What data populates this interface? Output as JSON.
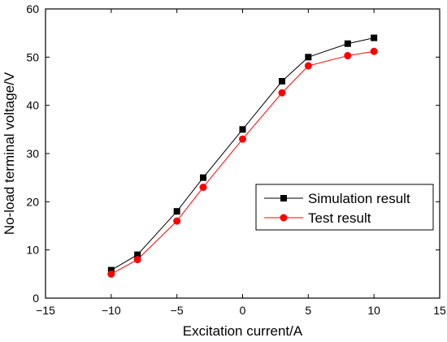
{
  "chart_data": {
    "type": "line",
    "xlabel": "Excitation current/A",
    "ylabel": "No-load terminal voltage/V",
    "xlim": [
      -15,
      15
    ],
    "ylim": [
      0,
      60
    ],
    "xticks": [
      -15,
      -10,
      -5,
      0,
      5,
      10,
      15
    ],
    "yticks": [
      0,
      10,
      20,
      30,
      40,
      50,
      60
    ],
    "x": [
      -10,
      -8,
      -5,
      -3,
      0,
      3,
      5,
      8,
      10
    ],
    "series": [
      {
        "name": "Simulation result",
        "values": [
          5.8,
          9.0,
          18.0,
          25.0,
          35.0,
          45.0,
          50.0,
          52.8,
          54.0
        ],
        "color": "#000000",
        "marker": "square"
      },
      {
        "name": "Test result",
        "values": [
          5.0,
          8.0,
          16.0,
          23.0,
          33.0,
          42.6,
          48.2,
          50.3,
          51.2
        ],
        "color": "#ff0000",
        "marker": "circle"
      }
    ],
    "grid": false,
    "legend_position": "lower-right"
  }
}
